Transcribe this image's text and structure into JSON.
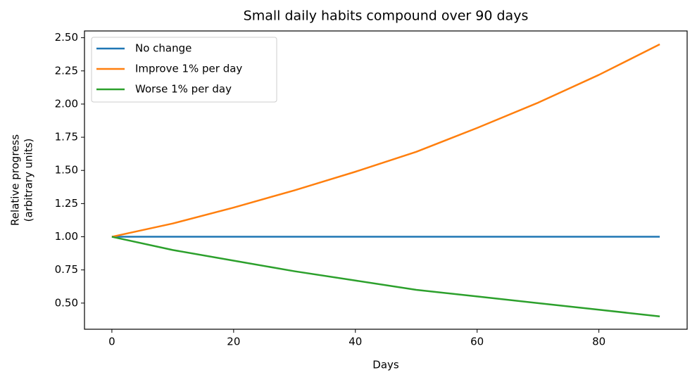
{
  "chart_data": {
    "type": "line",
    "title": "Small daily habits compound over 90 days",
    "xlabel": "Days",
    "ylabel": [
      "Relative progress",
      "(arbitrary units)"
    ],
    "x": [
      0,
      10,
      20,
      30,
      40,
      50,
      60,
      70,
      80,
      90
    ],
    "series": [
      {
        "name": "No change",
        "color": "#1f77b4",
        "values": [
          1.0,
          1.0,
          1.0,
          1.0,
          1.0,
          1.0,
          1.0,
          1.0,
          1.0,
          1.0
        ]
      },
      {
        "name": "Improve 1% per day",
        "color": "#ff7f0e",
        "values": [
          1.0,
          1.1,
          1.22,
          1.35,
          1.49,
          1.64,
          1.82,
          2.01,
          2.22,
          2.45
        ]
      },
      {
        "name": "Worse 1% per day",
        "color": "#2ca02c",
        "values": [
          1.0,
          0.9,
          0.82,
          0.74,
          0.67,
          0.6,
          0.55,
          0.5,
          0.45,
          0.4
        ]
      }
    ],
    "xlim": [
      -4.5,
      94.5
    ],
    "xticks": [
      0,
      20,
      40,
      60,
      80
    ],
    "ylim": [
      0.303,
      2.551
    ],
    "yticks": [
      {
        "value": 0.5,
        "label": "0.50"
      },
      0.75,
      {
        "value": 1.0,
        "label": "1.00"
      },
      1.25,
      {
        "value": 1.5,
        "label": "1.50"
      },
      1.75,
      {
        "value": 2.0,
        "label": "2.00"
      },
      2.25,
      {
        "value": 2.5,
        "label": "2.50"
      }
    ],
    "legend": "upper left",
    "grid": false
  }
}
